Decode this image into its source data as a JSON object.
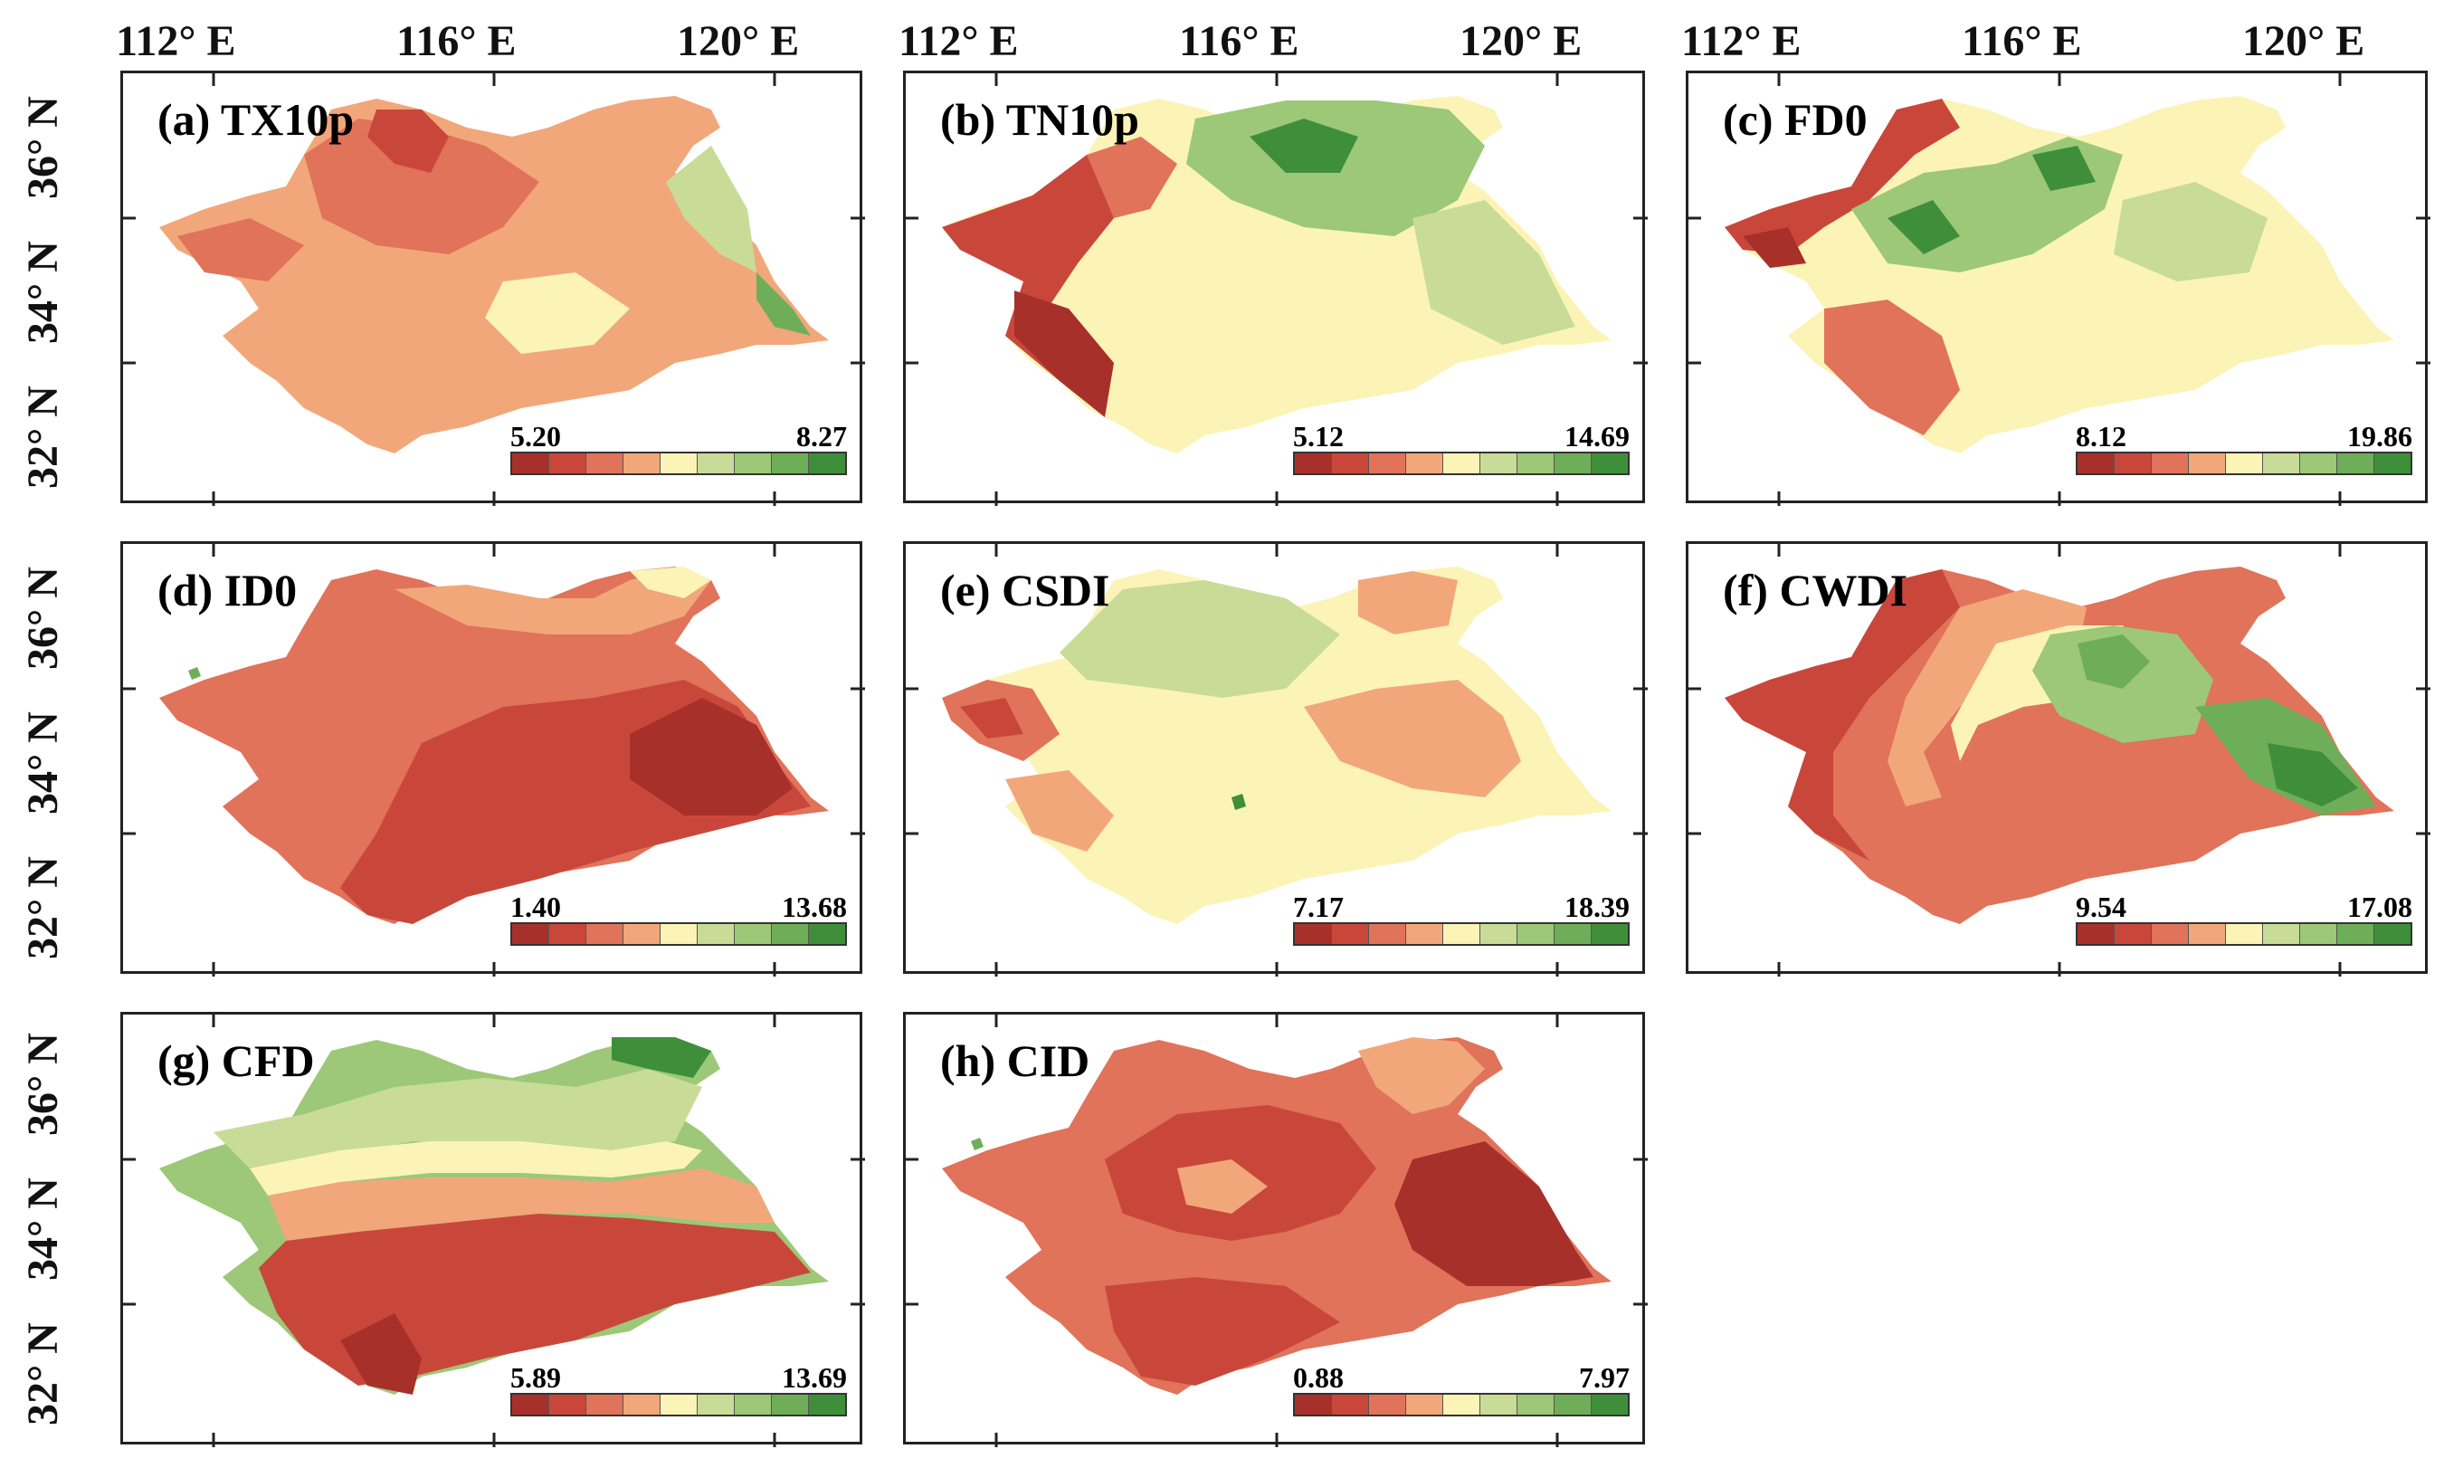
{
  "lon_labels": [
    "112° E",
    "116° E",
    "120° E"
  ],
  "lat_labels": [
    "32° N",
    "34° N",
    "36° N"
  ],
  "palette": [
    "#a8302b",
    "#c9473a",
    "#e0735a",
    "#f2a77a",
    "#fbf4b6",
    "#c8dc97",
    "#9cc878",
    "#6fae58",
    "#3f8f3a"
  ],
  "panels": [
    {
      "id": "a",
      "title": "(a) TX10p",
      "min": "5.20",
      "max": "8.27"
    },
    {
      "id": "b",
      "title": "(b) TN10p",
      "min": "5.12",
      "max": "14.69"
    },
    {
      "id": "c",
      "title": "(c) FD0",
      "min": "8.12",
      "max": "19.86"
    },
    {
      "id": "d",
      "title": "(d) ID0",
      "min": "1.40",
      "max": "13.68"
    },
    {
      "id": "e",
      "title": "(e) CSDI",
      "min": "7.17",
      "max": "18.39"
    },
    {
      "id": "f",
      "title": "(f) CWDI",
      "min": "9.54",
      "max": "17.08"
    },
    {
      "id": "g",
      "title": "(g) CFD",
      "min": "5.89",
      "max": "13.69"
    },
    {
      "id": "h",
      "title": "(h) CID",
      "min": "0.88",
      "max": "7.97"
    }
  ]
}
